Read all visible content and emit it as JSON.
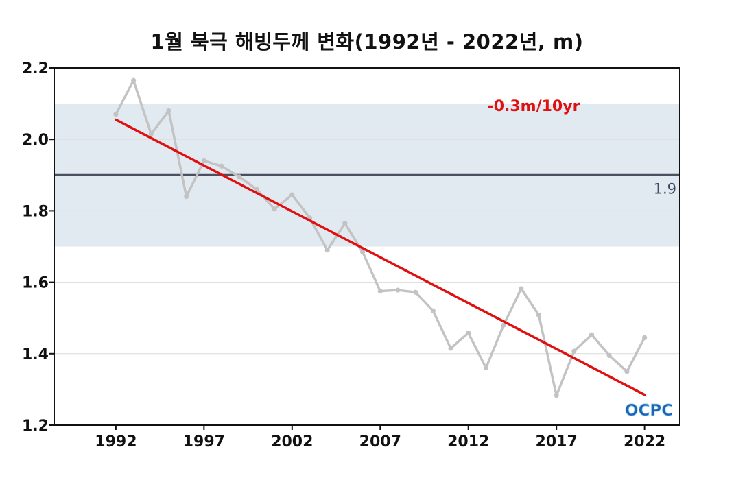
{
  "chart_data": {
    "type": "line",
    "title": "1월 북극 해빙두께 변화(1992년 - 2022년, m)",
    "xlabel": "",
    "ylabel": "",
    "xlim": [
      1988.5,
      2024
    ],
    "ylim": [
      1.2,
      2.2
    ],
    "y_ticks": [
      "1.2",
      "1.4",
      "1.6",
      "1.8",
      "2.0",
      "2.2"
    ],
    "x_ticks": [
      "1992",
      "1997",
      "2002",
      "2007",
      "2012",
      "2017",
      "2022"
    ],
    "grid": "horizontal",
    "series": [
      {
        "color": "#c3c3c3",
        "x": [
          1992,
          1993,
          1994,
          1995,
          1996,
          1997,
          1998,
          1999,
          2000,
          2001,
          2002,
          2003,
          2004,
          2005,
          2006,
          2007,
          2008,
          2009,
          2010,
          2011,
          2012,
          2013,
          2014,
          2015,
          2016,
          2017,
          2018,
          2019,
          2020,
          2021,
          2022
        ],
        "values": [
          2.07,
          2.165,
          2.015,
          2.08,
          1.84,
          1.94,
          1.925,
          1.895,
          1.86,
          1.805,
          1.845,
          1.78,
          1.69,
          1.765,
          1.685,
          1.575,
          1.578,
          1.572,
          1.52,
          1.415,
          1.458,
          1.36,
          1.48,
          1.582,
          1.508,
          1.283,
          1.407,
          1.453,
          1.395,
          1.35,
          1.445
        ]
      }
    ],
    "trend": {
      "color": "#e01010",
      "x": [
        1992,
        2022
      ],
      "values": [
        2.055,
        1.285
      ],
      "label": "-0.3m/10yr"
    },
    "reference": {
      "value": 1.9,
      "label": "1.9",
      "color": "#4a5060",
      "band": [
        1.7,
        2.1
      ],
      "band_color": "#e1e9f1"
    },
    "logo": "OCPC"
  }
}
